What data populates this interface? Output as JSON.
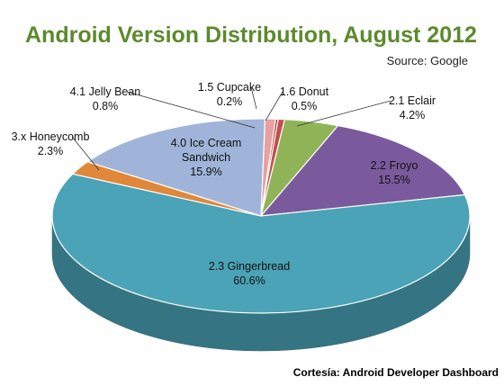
{
  "title": "Android Version Distribution, August 2012",
  "source": "Source: Google",
  "credit": "Cortesía: Android Developer Dashboard",
  "chart_data": {
    "type": "pie",
    "style": "3d",
    "slices": [
      {
        "name": "1.5 Cupcake",
        "value": 0.2,
        "label": "0.2%",
        "color": "#b83232"
      },
      {
        "name": "1.6 Donut",
        "value": 0.5,
        "label": "0.5%",
        "color": "#c0504d"
      },
      {
        "name": "2.1 Eclair",
        "value": 4.2,
        "label": "4.2%",
        "color": "#8fb356"
      },
      {
        "name": "2.2 Froyo",
        "value": 15.5,
        "label": "15.5%",
        "color": "#7a5a9c"
      },
      {
        "name": "2.3 Gingerbread",
        "value": 60.6,
        "label": "60.6%",
        "color": "#4aa3b6"
      },
      {
        "name": "3.x Honeycomb",
        "value": 2.3,
        "label": "2.3%",
        "color": "#e0873a"
      },
      {
        "name": "4.0 Ice Cream Sandwich",
        "value": 15.9,
        "label": "15.9%",
        "color": "#9fb4d8"
      },
      {
        "name": "4.1 Jelly Bean",
        "value": 0.8,
        "label": "0.8%",
        "color": "#e8a0a0"
      }
    ]
  }
}
